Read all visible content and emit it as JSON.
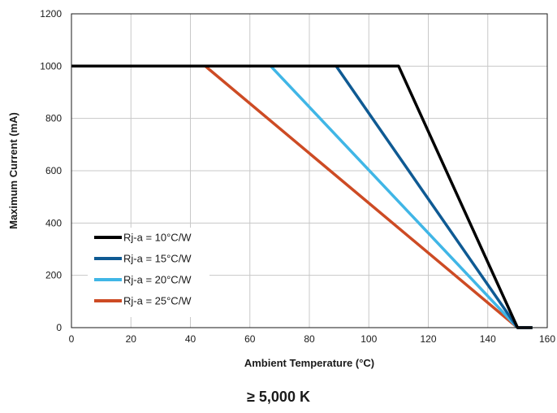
{
  "caption": "≥ 5,000 K",
  "chart_data": {
    "type": "line",
    "title": "",
    "xlabel": "Ambient Temperature (°C)",
    "ylabel": "Maximum Current (mA)",
    "xlim": [
      0,
      160
    ],
    "ylim": [
      0,
      1200
    ],
    "xticks": [
      "0",
      "20",
      "40",
      "60",
      "80",
      "100",
      "120",
      "140",
      "160"
    ],
    "yticks": [
      "0",
      "200",
      "400",
      "600",
      "800",
      "1000",
      "1200"
    ],
    "grid": true,
    "legend_position": "bottom-left",
    "series": [
      {
        "name": "Rj-a = 10°C/W",
        "color": "#000000",
        "x": [
          0,
          110,
          150,
          155
        ],
        "y": [
          1000,
          1000,
          0,
          0
        ]
      },
      {
        "name": "Rj-a = 15°C/W",
        "color": "#0f5a93",
        "x": [
          0,
          89,
          150,
          155
        ],
        "y": [
          1000,
          1000,
          0,
          0
        ]
      },
      {
        "name": "Rj-a = 20°C/W",
        "color": "#40b6e6",
        "x": [
          0,
          67,
          150,
          155
        ],
        "y": [
          1000,
          1000,
          0,
          0
        ]
      },
      {
        "name": "Rj-a = 25°C/W",
        "color": "#cd4b24",
        "x": [
          0,
          45,
          150,
          155
        ],
        "y": [
          1000,
          1000,
          0,
          0
        ]
      }
    ]
  }
}
